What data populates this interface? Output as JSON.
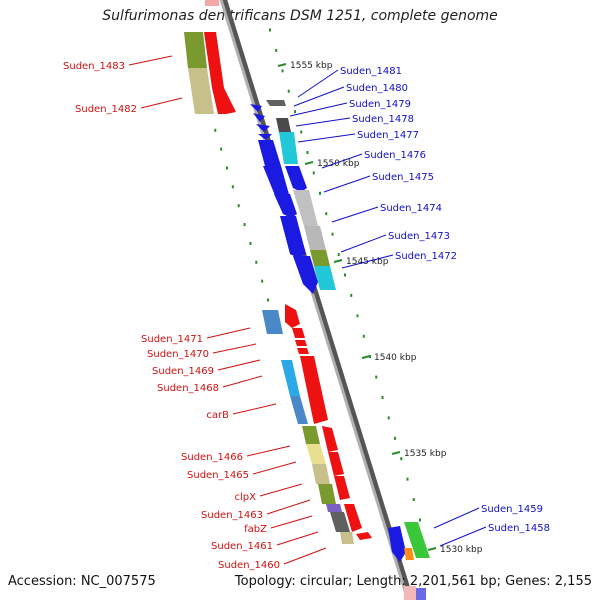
{
  "title": "Sulfurimonas denitrificans DSM 1251, complete genome",
  "accession": "Accession: NC_007575",
  "topology": "Topology: circular; Length: 2,201,561 bp; Genes: 2,155",
  "ticks": [
    "1555 kbp",
    "1550 kbp",
    "1545 kbp",
    "1540 kbp",
    "1535 kbp",
    "1530 kbp"
  ],
  "labels_forward": [
    "Suden_1481",
    "Suden_1480",
    "Suden_1479",
    "Suden_1478",
    "Suden_1477",
    "Suden_1476",
    "Suden_1475",
    "Suden_1474",
    "Suden_1473",
    "Suden_1472",
    "Suden_1459",
    "Suden_1458"
  ],
  "labels_reverse": [
    "Suden_1483",
    "Suden_1482",
    "Suden_1471",
    "Suden_1470",
    "Suden_1469",
    "Suden_1468",
    "carB",
    "Suden_1466",
    "Suden_1465",
    "clpX",
    "Suden_1463",
    "fabZ",
    "Suden_1461",
    "Suden_1460"
  ],
  "colors": {
    "forward_label": "#1010c8",
    "reverse_label": "#d01010",
    "backbone": "#8a8a8a",
    "tick_green": "#2a8a2a",
    "cds_blue": "#1a1ae0",
    "cds_red": "#ee1111",
    "olive": "#7a9a30",
    "khaki": "#c8c08a",
    "cyan": "#22c8d8",
    "grey": "#b8b8b8",
    "steel": "#4a88c8",
    "sky": "#2aa8e8",
    "yellow": "#e8e090",
    "purple": "#7a60c0",
    "green": "#3ac83a",
    "orange": "#ff8c1a"
  }
}
